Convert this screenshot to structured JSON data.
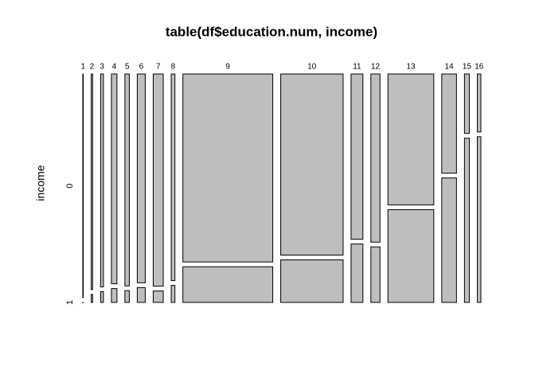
{
  "chart_data": {
    "type": "mosaic",
    "title": "table(df$education.num, income)",
    "y_label": "income",
    "categories": [
      "1",
      "2",
      "3",
      "4",
      "5",
      "6",
      "7",
      "8",
      "9",
      "10",
      "11",
      "12",
      "13",
      "14",
      "15",
      "16"
    ],
    "series": [
      {
        "name": "0",
        "values": [
          51,
          162,
          317,
          606,
          487,
          871,
          1115,
          400,
          8826,
          5904,
          1021,
          802,
          3134,
          764,
          153,
          107
        ]
      },
      {
        "name": "1",
        "values": [
          0,
          6,
          16,
          40,
          27,
          62,
          60,
          33,
          1675,
          1387,
          361,
          265,
          2221,
          959,
          423,
          306
        ]
      }
    ],
    "color": "#bebebe"
  }
}
